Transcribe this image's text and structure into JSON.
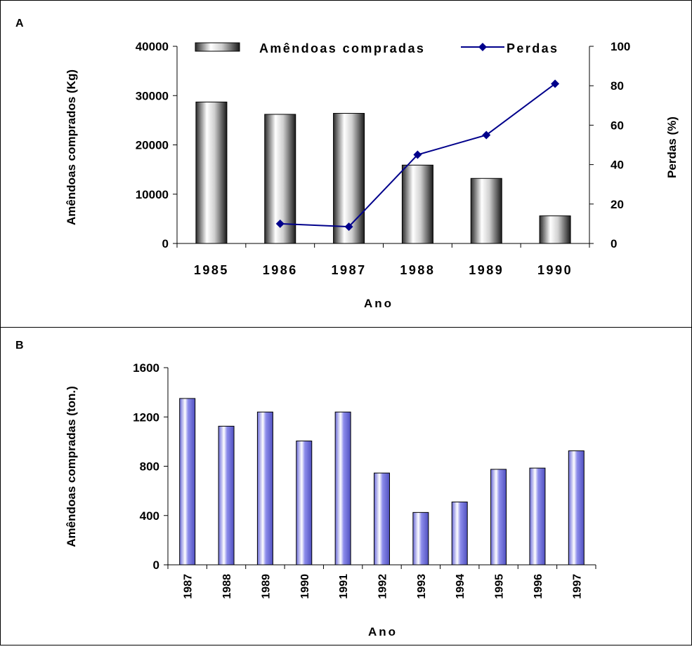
{
  "chart_data": [
    {
      "panel_label": "A",
      "type": "bar",
      "categories": [
        "1985",
        "1986",
        "1987",
        "1988",
        "1989",
        "1990"
      ],
      "series": [
        {
          "name": "Amêndoas compradas",
          "type": "bar",
          "axis": "left",
          "values": [
            28700,
            26200,
            26400,
            15900,
            13200,
            5600
          ]
        },
        {
          "name": "Perdas",
          "type": "line",
          "axis": "right",
          "values": [
            null,
            10,
            8.5,
            45,
            55,
            81
          ],
          "color": "#00008B"
        }
      ],
      "xlabel": "Ano",
      "ylabel": "Amêndoas comprados (Kg)",
      "y2label": "Perdas (%)",
      "ylim": [
        0,
        40000
      ],
      "y2lim": [
        0,
        100
      ],
      "yticks": [
        "0",
        "10000",
        "20000",
        "30000",
        "40000"
      ],
      "y2ticks": [
        "0",
        "20",
        "40",
        "60",
        "80",
        "100"
      ],
      "legend": "top",
      "grid": false
    },
    {
      "panel_label": "B",
      "type": "bar",
      "categories": [
        "1987",
        "1988",
        "1989",
        "1990",
        "1991",
        "1992",
        "1993",
        "1994",
        "1995",
        "1996",
        "1997"
      ],
      "series": [
        {
          "values": [
            1350,
            1125,
            1240,
            1005,
            1240,
            745,
            425,
            510,
            775,
            785,
            925
          ],
          "color": "#8C8CEB"
        }
      ],
      "xlabel": "Ano",
      "ylabel": "Amêndoas compradas (ton.)",
      "ylim": [
        0,
        1600
      ],
      "yticks": [
        "0",
        "400",
        "800",
        "1200",
        "1600"
      ],
      "grid": false
    }
  ]
}
